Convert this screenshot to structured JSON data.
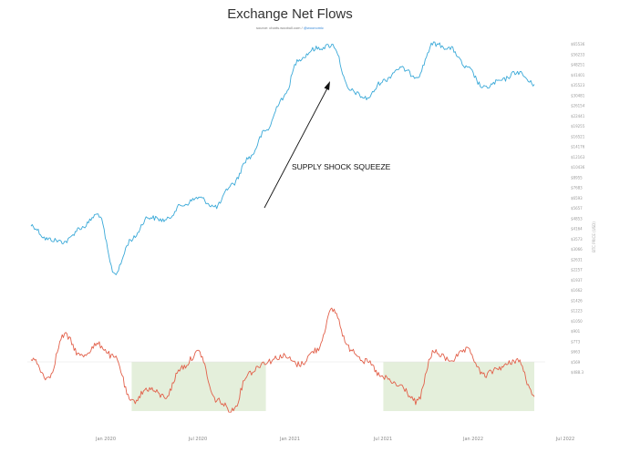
{
  "header": {
    "title": "Exchange Net Flows",
    "source_text": "source: charts.woobull.com / ",
    "source_handle": "@woonomic"
  },
  "chart_data": {
    "type": "line",
    "title": "Exchange Net Flows",
    "xlabel": "",
    "ylabel": "BTC PRICE (USD)",
    "x_tick_labels": [
      "Jan 2020",
      "Jul 2020",
      "Jan 2021",
      "Jul 2021",
      "Jan 2022",
      "Jul 2022"
    ],
    "y_tick_labels": [
      "$65536",
      "$56233",
      "$48251",
      "$41401",
      "$35523",
      "$30481",
      "$26154",
      "$22441",
      "$19255",
      "$16521",
      "$14176",
      "$12163",
      "$10436",
      "$8955",
      "$7683",
      "$6593",
      "$5657",
      "$4853",
      "$4164",
      "$3573",
      "$3066",
      "$2631",
      "$2257",
      "$1937",
      "$1662",
      "$1426",
      "$1223",
      "$1050",
      "$901",
      "$773",
      "$663",
      "$569",
      "$488.3"
    ],
    "annotation": "SUPPLY SHOCK SQUEEZE",
    "shaded_periods": [
      {
        "start": "2020-04",
        "end": "2020-12"
      },
      {
        "start": "2021-07",
        "end": "2022-04"
      }
    ],
    "series": [
      {
        "name": "",
        "color": "#3aa9d8",
        "x": [
          "2019-10",
          "2019-11",
          "2019-12",
          "2020-01",
          "2020-02",
          "2020-03",
          "2020-04",
          "2020-05",
          "2020-06",
          "2020-07",
          "2020-08",
          "2020-09",
          "2020-10",
          "2020-11",
          "2020-12",
          "2021-01",
          "2021-02",
          "2021-03",
          "2021-04",
          "2021-05",
          "2021-06",
          "2021-07",
          "2021-08",
          "2021-09",
          "2021-10",
          "2021-11",
          "2021-12",
          "2022-01",
          "2022-02",
          "2022-03",
          "2022-04"
        ],
        "values": [
          8700,
          7500,
          7300,
          8500,
          9800,
          5200,
          7500,
          9500,
          9200,
          10800,
          11700,
          10600,
          13500,
          18000,
          24000,
          34000,
          52000,
          58000,
          60000,
          37000,
          34000,
          41000,
          47000,
          43000,
          61000,
          58000,
          47000,
          38000,
          41000,
          45000,
          39500
        ]
      },
      {
        "name": "",
        "color": "#e2604a",
        "x": [
          "2019-10",
          "2019-11",
          "2019-12",
          "2020-01",
          "2020-02",
          "2020-03",
          "2020-04",
          "2020-05",
          "2020-06",
          "2020-07",
          "2020-08",
          "2020-09",
          "2020-10",
          "2020-11",
          "2020-12",
          "2021-01",
          "2021-02",
          "2021-03",
          "2021-04",
          "2021-05",
          "2021-06",
          "2021-07",
          "2021-08",
          "2021-09",
          "2021-10",
          "2021-11",
          "2021-12",
          "2022-01",
          "2022-02",
          "2022-03",
          "2022-04"
        ],
        "values": [
          0.2,
          -0.6,
          1.4,
          0.3,
          0.9,
          0.2,
          -1.5,
          -1.0,
          -1.3,
          -0.2,
          0.5,
          -1.4,
          -1.8,
          -0.4,
          0.0,
          0.3,
          -0.1,
          0.6,
          2.7,
          0.7,
          0.0,
          -0.6,
          -0.9,
          -1.5,
          0.5,
          0.1,
          0.6,
          -0.5,
          -0.2,
          0.1,
          -1.3
        ]
      }
    ]
  }
}
